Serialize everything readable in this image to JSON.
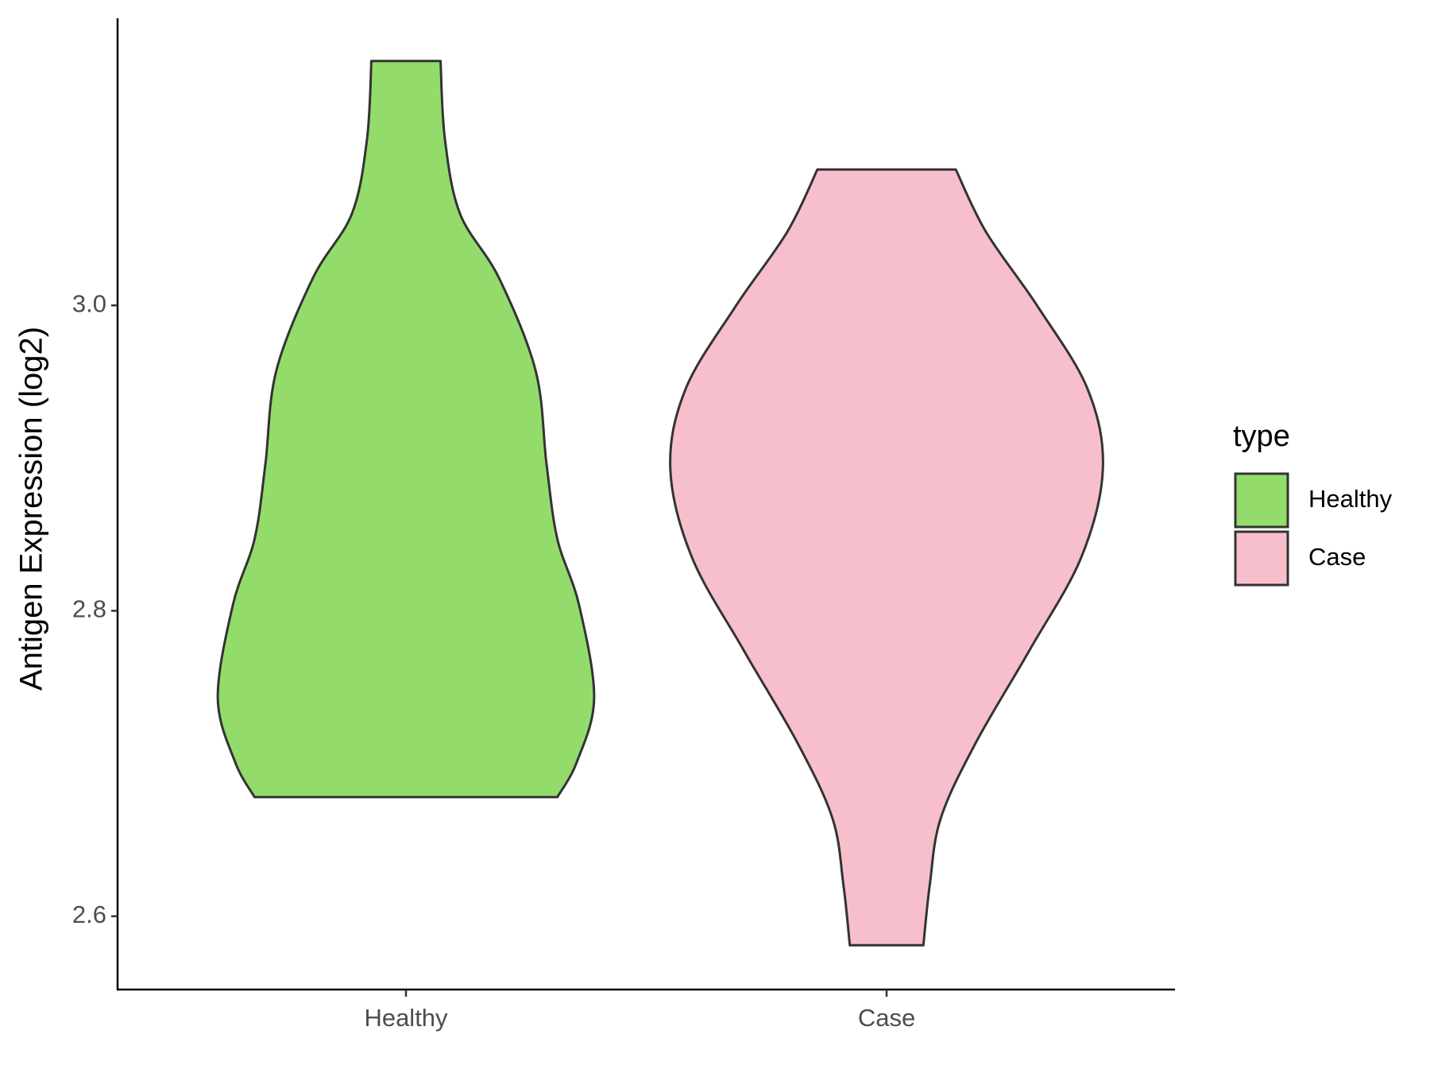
{
  "chart_data": {
    "type": "violin",
    "y_label": "Antigen Expression (log2)",
    "categories": [
      "Healthy",
      "Case"
    ],
    "legend_title": "type",
    "legend": "right",
    "ylim": [
      2.552,
      3.188
    ],
    "yticks": [
      2.6,
      2.8,
      {
        "value": 3,
        "label": "3.0"
      }
    ],
    "series": [
      {
        "name": "Healthy",
        "color": "#93dc6b",
        "y": [
          3.16,
          3.109,
          3.06,
          3.018,
          2.957,
          2.896,
          2.847,
          2.804,
          2.743,
          2.701,
          2.678
        ],
        "density": [
          0.16,
          0.18,
          0.25,
          0.43,
          0.6,
          0.65,
          0.7,
          0.8,
          0.87,
          0.79,
          0.7
        ]
      },
      {
        "name": "Case",
        "color": "#f7bfcb",
        "y": [
          3.089,
          3.048,
          2.999,
          2.945,
          2.893,
          2.835,
          2.774,
          2.713,
          2.664,
          2.621,
          2.581
        ],
        "density": [
          0.32,
          0.46,
          0.7,
          0.93,
          1.0,
          0.9,
          0.66,
          0.41,
          0.25,
          0.2,
          0.17
        ]
      }
    ]
  }
}
